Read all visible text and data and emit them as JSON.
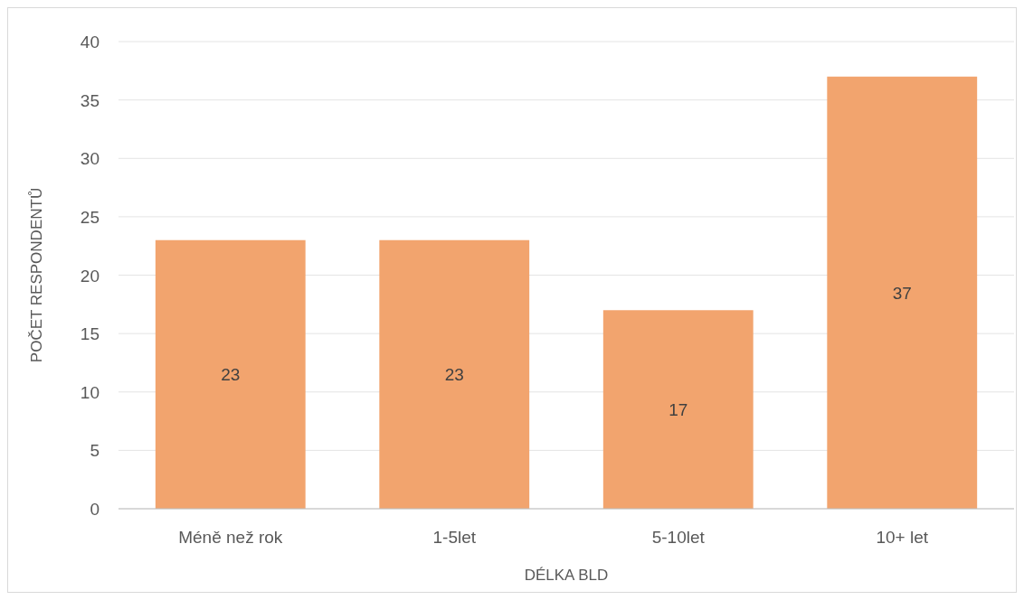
{
  "chart_data": {
    "type": "bar",
    "xlabel": "DÉLKA BLD",
    "ylabel": "POČET RESPONDENTŮ",
    "categories": [
      "Méně než rok",
      "1-5let",
      "5-10let",
      "10+ let"
    ],
    "values": [
      23,
      23,
      17,
      37
    ],
    "color": "#f2a46e",
    "ylim": [
      0,
      40
    ],
    "yticks": [
      0,
      5,
      10,
      15,
      20,
      25,
      30,
      35,
      40
    ],
    "grid": "y",
    "data_labels": true
  }
}
